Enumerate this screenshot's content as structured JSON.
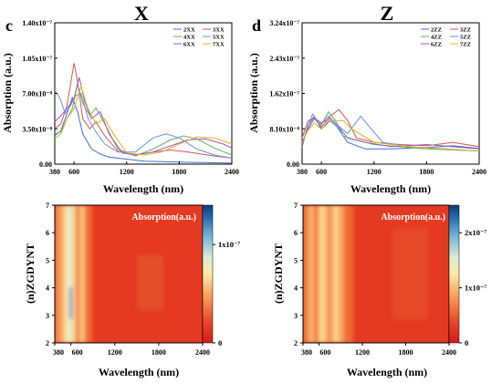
{
  "chart_data": [
    {
      "id": "c",
      "type": "line",
      "panel_letter": "c",
      "title": "X",
      "xlabel": "Wavelength (nm)",
      "ylabel": "Absorption (a.u.)",
      "xlim": [
        380,
        2400
      ],
      "ylim": [
        0,
        1.4e-07
      ],
      "xticks": [
        380,
        600,
        1200,
        1800,
        2400
      ],
      "yticks": [
        0,
        3.5e-08,
        7e-08,
        1.05e-07,
        1.4e-07
      ],
      "ytick_labels": [
        "0.00",
        "3.50x10⁻⁸",
        "7.00x10⁻⁸",
        "1.05x10⁻⁷",
        "1.40x10⁻⁷"
      ],
      "legend_position": "top-right",
      "grid": false,
      "series": [
        {
          "name": "2XX",
          "color": "#3b6fd0",
          "points": [
            [
              380,
              2.8e-08
            ],
            [
              450,
              3.3e-08
            ],
            [
              520,
              5e-08
            ],
            [
              580,
              6.6e-08
            ],
            [
              640,
              5.2e-08
            ],
            [
              700,
              3e-08
            ],
            [
              800,
              1.5e-08
            ],
            [
              900,
              1e-08
            ],
            [
              1000,
              7e-09
            ],
            [
              1200,
              5e-09
            ],
            [
              1400,
              3e-09
            ],
            [
              1800,
              2e-09
            ],
            [
              2400,
              1e-09
            ]
          ]
        },
        {
          "name": "3XX",
          "color": "#d9534f",
          "points": [
            [
              380,
              3.5e-08
            ],
            [
              450,
              4e-08
            ],
            [
              520,
              5.8e-08
            ],
            [
              600,
              1e-07
            ],
            [
              640,
              8.2e-08
            ],
            [
              700,
              4.5e-08
            ],
            [
              780,
              3.5e-08
            ],
            [
              850,
              4.2e-08
            ],
            [
              950,
              2.8e-08
            ],
            [
              1100,
              1.3e-08
            ],
            [
              1300,
              9e-09
            ],
            [
              1500,
              1.2e-08
            ],
            [
              1700,
              1.4e-08
            ],
            [
              1900,
              1.2e-08
            ],
            [
              2200,
              8e-09
            ],
            [
              2400,
              6e-09
            ]
          ]
        },
        {
          "name": "4XX",
          "color": "#5cb85c",
          "points": [
            [
              380,
              3e-08
            ],
            [
              450,
              3.2e-08
            ],
            [
              520,
              4.5e-08
            ],
            [
              580,
              5.5e-08
            ],
            [
              640,
              8e-08
            ],
            [
              700,
              6e-08
            ],
            [
              780,
              4.8e-08
            ],
            [
              850,
              5.6e-08
            ],
            [
              950,
              4e-08
            ],
            [
              1100,
              1.5e-08
            ],
            [
              1300,
              8e-09
            ],
            [
              1500,
              1.5e-08
            ],
            [
              1700,
              2.4e-08
            ],
            [
              1850,
              2.8e-08
            ],
            [
              2000,
              2.5e-08
            ],
            [
              2200,
              1.6e-08
            ],
            [
              2400,
              9e-09
            ]
          ]
        },
        {
          "name": "5XX",
          "color": "#6495ed",
          "points": [
            [
              380,
              7.3e-08
            ],
            [
              440,
              6.5e-08
            ],
            [
              500,
              5e-08
            ],
            [
              560,
              5.8e-08
            ],
            [
              620,
              6.8e-08
            ],
            [
              680,
              7e-08
            ],
            [
              760,
              4.5e-08
            ],
            [
              850,
              3.2e-08
            ],
            [
              950,
              2e-08
            ],
            [
              1100,
              1.2e-08
            ],
            [
              1300,
              1.2e-08
            ],
            [
              1500,
              2.6e-08
            ],
            [
              1650,
              3e-08
            ],
            [
              1800,
              2.6e-08
            ],
            [
              2000,
              1.5e-08
            ],
            [
              2200,
              9e-09
            ],
            [
              2400,
              6e-09
            ]
          ]
        },
        {
          "name": "6XX",
          "color": "#9b59b6",
          "points": [
            [
              380,
              4.2e-08
            ],
            [
              450,
              4.8e-08
            ],
            [
              520,
              5.5e-08
            ],
            [
              600,
              6.5e-08
            ],
            [
              660,
              8.6e-08
            ],
            [
              720,
              6.2e-08
            ],
            [
              800,
              4.5e-08
            ],
            [
              900,
              5.2e-08
            ],
            [
              1000,
              3e-08
            ],
            [
              1150,
              1.1e-08
            ],
            [
              1300,
              9e-09
            ],
            [
              1500,
              1.2e-08
            ],
            [
              1700,
              1.8e-08
            ],
            [
              1900,
              2.4e-08
            ],
            [
              2100,
              2.5e-08
            ],
            [
              2300,
              2e-08
            ],
            [
              2400,
              1.6e-08
            ]
          ]
        },
        {
          "name": "7XX",
          "color": "#e0b020",
          "points": [
            [
              380,
              2.5e-08
            ],
            [
              450,
              3e-08
            ],
            [
              520,
              4.5e-08
            ],
            [
              600,
              5.5e-08
            ],
            [
              680,
              7.7e-08
            ],
            [
              760,
              5.5e-08
            ],
            [
              850,
              4e-08
            ],
            [
              950,
              4.5e-08
            ],
            [
              1050,
              3e-08
            ],
            [
              1200,
              1.1e-08
            ],
            [
              1400,
              9e-09
            ],
            [
              1600,
              1.2e-08
            ],
            [
              1800,
              2e-08
            ],
            [
              2000,
              2.7e-08
            ],
            [
              2200,
              2.6e-08
            ],
            [
              2400,
              2e-08
            ]
          ]
        }
      ]
    },
    {
      "id": "d",
      "type": "line",
      "panel_letter": "d",
      "title": "Z",
      "xlabel": "Wavelength (nm)",
      "ylabel": "Absorption (a.u.)",
      "xlim": [
        380,
        2400
      ],
      "ylim": [
        0,
        3.24e-07
      ],
      "xticks": [
        380,
        600,
        1200,
        1800,
        2400
      ],
      "yticks": [
        0,
        8.1e-08,
        1.62e-07,
        2.43e-07,
        3.24e-07
      ],
      "ytick_labels": [
        "0.00",
        "8.10x10⁻⁸",
        "1.62x10⁻⁷",
        "2.43x10⁻⁷",
        "3.24x10⁻⁷"
      ],
      "legend_position": "top-right",
      "grid": false,
      "series": [
        {
          "name": "2ZZ",
          "color": "#3b6fd0",
          "points": [
            [
              380,
              4e-08
            ],
            [
              450,
              9e-08
            ],
            [
              520,
              1.1e-07
            ],
            [
              600,
              8e-08
            ],
            [
              700,
              1e-07
            ],
            [
              780,
              8.5e-08
            ],
            [
              900,
              5e-08
            ],
            [
              1100,
              3.5e-08
            ],
            [
              1400,
              3.5e-08
            ],
            [
              1800,
              3.8e-08
            ],
            [
              2100,
              4.2e-08
            ],
            [
              2400,
              3.6e-08
            ]
          ]
        },
        {
          "name": "3ZZ",
          "color": "#d9534f",
          "points": [
            [
              380,
              6e-08
            ],
            [
              450,
              1e-07
            ],
            [
              520,
              1.05e-07
            ],
            [
              600,
              8.5e-08
            ],
            [
              700,
              1.1e-07
            ],
            [
              800,
              1.25e-07
            ],
            [
              900,
              1e-07
            ],
            [
              1000,
              6e-08
            ],
            [
              1200,
              5e-08
            ],
            [
              1500,
              4.5e-08
            ],
            [
              1800,
              4.2e-08
            ],
            [
              2100,
              5e-08
            ],
            [
              2400,
              4e-08
            ]
          ]
        },
        {
          "name": "4ZZ",
          "color": "#5cb85c",
          "points": [
            [
              380,
              5e-08
            ],
            [
              450,
              8e-08
            ],
            [
              520,
              1.05e-07
            ],
            [
              600,
              9e-08
            ],
            [
              680,
              1.2e-07
            ],
            [
              760,
              1e-07
            ],
            [
              850,
              6.5e-08
            ],
            [
              950,
              5.8e-08
            ],
            [
              1200,
              4.5e-08
            ],
            [
              1500,
              4e-08
            ],
            [
              1800,
              3.5e-08
            ],
            [
              2400,
              3e-08
            ]
          ]
        },
        {
          "name": "5ZZ",
          "color": "#6495ed",
          "points": [
            [
              380,
              4.5e-08
            ],
            [
              440,
              8.5e-08
            ],
            [
              500,
              1.15e-07
            ],
            [
              580,
              9e-08
            ],
            [
              680,
              1.1e-07
            ],
            [
              780,
              9e-08
            ],
            [
              900,
              7e-08
            ],
            [
              1050,
              1.1e-07
            ],
            [
              1150,
              8.5e-08
            ],
            [
              1300,
              5e-08
            ],
            [
              1600,
              4e-08
            ],
            [
              2000,
              3.5e-08
            ],
            [
              2400,
              3e-08
            ]
          ]
        },
        {
          "name": "6ZZ",
          "color": "#9b59b6",
          "points": [
            [
              380,
              4.5e-08
            ],
            [
              440,
              8e-08
            ],
            [
              520,
              1.05e-07
            ],
            [
              600,
              9.5e-08
            ],
            [
              700,
              1.05e-07
            ],
            [
              800,
              8.5e-08
            ],
            [
              900,
              6e-08
            ],
            [
              1100,
              5e-08
            ],
            [
              1400,
              4e-08
            ],
            [
              1800,
              4.5e-08
            ],
            [
              2400,
              3.5e-08
            ]
          ]
        },
        {
          "name": "7ZZ",
          "color": "#e0b020",
          "points": [
            [
              380,
              5e-08
            ],
            [
              440,
              7.5e-08
            ],
            [
              520,
              9.5e-08
            ],
            [
              600,
              8e-08
            ],
            [
              680,
              1e-07
            ],
            [
              760,
              1e-07
            ],
            [
              850,
              1e-07
            ],
            [
              950,
              8e-08
            ],
            [
              1200,
              5e-08
            ],
            [
              1600,
              4e-08
            ],
            [
              2000,
              3.5e-08
            ],
            [
              2400,
              3e-08
            ]
          ]
        }
      ]
    },
    {
      "id": "heat-x",
      "type": "heatmap",
      "xlabel": "Wavelength (nm)",
      "ylabel": "(n)ZGDYNT",
      "xlim": [
        380,
        2400
      ],
      "ylim": [
        2,
        7
      ],
      "xticks": [
        380,
        600,
        1200,
        1800,
        2400
      ],
      "yticks": [
        2,
        3,
        4,
        5,
        6,
        7
      ],
      "colorbar_label": "Absorption(a.u.)",
      "colorbar_ticks": [
        0,
        1e-07
      ],
      "colorbar_tick_labels": [
        "0",
        "1x10⁻⁷"
      ],
      "colorbar_max": 1.4e-07,
      "colormap": [
        "#d7191c",
        "#e8452a",
        "#f9a35c",
        "#fee8a8",
        "#d8ecd6",
        "#6fb3d6",
        "#2166ac",
        "#0b3c7a"
      ]
    },
    {
      "id": "heat-z",
      "type": "heatmap",
      "xlabel": "Wavelength (nm)",
      "ylabel": "(n)ZGDYNT",
      "xlim": [
        380,
        2400
      ],
      "ylim": [
        2,
        7
      ],
      "xticks": [
        380,
        600,
        1200,
        1800,
        2400
      ],
      "yticks": [
        2,
        3,
        4,
        5,
        6,
        7
      ],
      "colorbar_label": "Absorption(a.u.)",
      "colorbar_ticks": [
        0,
        1e-07,
        2e-07
      ],
      "colorbar_tick_labels": [
        "0",
        "1x10⁻⁷",
        "2x10⁻⁷"
      ],
      "colorbar_max": 2.5e-07,
      "colormap": [
        "#d7191c",
        "#e8452a",
        "#f9a35c",
        "#fee8a8",
        "#d8ecd6",
        "#6fb3d6",
        "#2166ac",
        "#0b3c7a"
      ]
    }
  ]
}
